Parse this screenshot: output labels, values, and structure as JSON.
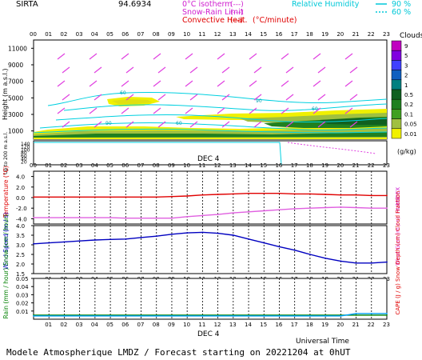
{
  "header": {
    "station": "SIRTA",
    "coords": "94.6934",
    "legend_left": [
      {
        "label": "0°C isotherm",
        "sample": "(---)",
        "color": "#d020d0"
      },
      {
        "label": "Snow-Rain Limit",
        "sample": "(---)",
        "color": "#d020d0"
      },
      {
        "label": "Convective Heat.",
        "sample": "(—)",
        "extra": "(°C/minute)",
        "color": "#e00000"
      }
    ],
    "legend_right": {
      "label": "Relative Humidity",
      "v1": "90 %",
      "v2": "60 %",
      "color": "#00c8d8"
    }
  },
  "colorbar": {
    "title": "Clouds",
    "unit": "(g/kg)",
    "levels": [
      "9",
      "5",
      "3",
      "2",
      "1",
      "0.5",
      "0.2",
      "0.1",
      "0.05",
      "0.01"
    ],
    "colors": [
      "#c000c0",
      "#8000e0",
      "#4040ff",
      "#1060c0",
      "#008080",
      "#106020",
      "#208020",
      "#40a020",
      "#a0c040",
      "#f0f000"
    ]
  },
  "footer": {
    "universal_time": "Universal Time",
    "caption": "Modele Atmospherique LMDZ / Forecast starting on 20221204 at 0hUT"
  },
  "date_label": "DEC  4",
  "hours": [
    "00",
    "01",
    "02",
    "03",
    "04",
    "05",
    "06",
    "07",
    "08",
    "09",
    "10",
    "11",
    "12",
    "13",
    "14",
    "15",
    "16",
    "17",
    "18",
    "19",
    "20",
    "21",
    "22",
    "23"
  ],
  "chart_data": [
    {
      "type": "heatmap",
      "title": "",
      "ylabel": "Height (m a.s.l.)",
      "yticks": [
        "1000",
        "3000",
        "5000",
        "7000",
        "9000",
        "11000"
      ],
      "low_ylabel": "Up to 200 m a.s.l.",
      "low_yticks": [
        "20",
        "40",
        "60",
        "80",
        "100",
        "120",
        "140"
      ],
      "rh_contour_labels": [
        "60",
        "90"
      ],
      "xlim": [
        0,
        23
      ]
    },
    {
      "type": "line",
      "ylabel": "Temperature (°C)",
      "ylabel_right": "HUMIDEX",
      "yticks": [
        "4.0",
        "2.0",
        "0.0",
        "-2.0",
        "-4.0"
      ],
      "ylim": [
        -5,
        5
      ],
      "x": [
        0,
        1,
        2,
        3,
        4,
        5,
        6,
        7,
        8,
        9,
        10,
        11,
        12,
        13,
        14,
        15,
        16,
        17,
        18,
        19,
        20,
        21,
        22,
        23
      ],
      "series": [
        {
          "values": [
            0.1,
            0.1,
            0.1,
            0.1,
            0.1,
            0.1,
            0.1,
            0.1,
            0.1,
            0.2,
            0.3,
            0.5,
            0.6,
            0.7,
            0.8,
            0.8,
            0.8,
            0.7,
            0.7,
            0.6,
            0.5,
            0.5,
            0.4,
            0.4
          ],
          "color": "#e00000"
        },
        {
          "values": [
            -3.8,
            -3.8,
            -3.8,
            -3.8,
            -3.8,
            -3.8,
            -3.9,
            -3.9,
            -3.9,
            -3.9,
            -3.6,
            -3.4,
            -3.2,
            -2.9,
            -2.7,
            -2.5,
            -2.3,
            -2.1,
            -2.0,
            -1.9,
            -1.8,
            -1.9,
            -2.0,
            -2.0
          ],
          "color": "#e060e0"
        }
      ]
    },
    {
      "type": "line",
      "ylabel": "Wind Speed (m / s)",
      "ylabel_right": "Wind Gust (m / s)",
      "yticks": [
        "4.0",
        "3.5",
        "3.0",
        "2.5",
        "2.0",
        "1.5"
      ],
      "ylim": [
        1.5,
        4.0
      ],
      "x": [
        0,
        1,
        2,
        3,
        4,
        5,
        6,
        7,
        8,
        9,
        10,
        11,
        12,
        13,
        14,
        15,
        16,
        17,
        18,
        19,
        20,
        21,
        22,
        23
      ],
      "series": [
        {
          "values": [
            3.05,
            3.1,
            3.15,
            3.2,
            3.25,
            3.28,
            3.3,
            3.38,
            3.45,
            3.55,
            3.62,
            3.65,
            3.6,
            3.5,
            3.3,
            3.1,
            2.9,
            2.72,
            2.5,
            2.3,
            2.15,
            2.05,
            2.05,
            2.1
          ],
          "color": "#0000c0"
        }
      ]
    },
    {
      "type": "line",
      "ylabel": "Rain (mm / hour) Snow (cm / hour)",
      "ylabel_right": "CAPE (J / g) Snow Depth (cm) Cloud Fraction",
      "yticks": [
        "0.01",
        "0.02",
        "0.03",
        "0.04",
        "0.05"
      ],
      "ylim": [
        0,
        0.05
      ],
      "x": [
        0,
        1,
        2,
        3,
        4,
        5,
        6,
        7,
        8,
        9,
        10,
        11,
        12,
        13,
        14,
        15,
        16,
        17,
        18,
        19,
        20,
        21,
        22,
        23
      ],
      "series": [
        {
          "values": [
            0.005,
            0.005,
            0.005,
            0.005,
            0.005,
            0.005,
            0.005,
            0.005,
            0.005,
            0.005,
            0.005,
            0.005,
            0.005,
            0.005,
            0.005,
            0.005,
            0.005,
            0.005,
            0.005,
            0.005,
            0.005,
            0.005,
            0.005,
            0.005
          ],
          "color": "#008000"
        },
        {
          "values": [
            0.004,
            0.004,
            0.004,
            0.004,
            0.004,
            0.004,
            0.004,
            0.004,
            0.004,
            0.004,
            0.004,
            0.004,
            0.004,
            0.004,
            0.004,
            0.004,
            0.004,
            0.004,
            0.004,
            0.004,
            0.004,
            0.007,
            0.007,
            0.007
          ],
          "color": "#00a0ff"
        }
      ]
    }
  ]
}
